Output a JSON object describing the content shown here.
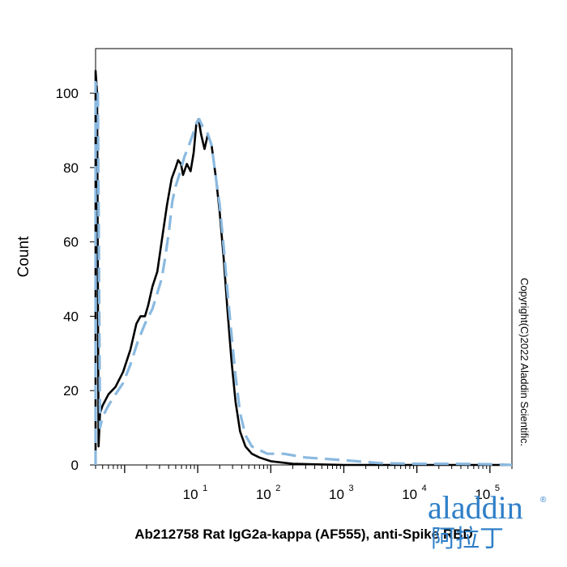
{
  "chart_data": {
    "type": "line",
    "xscale": "log",
    "xlim": [
      0.4,
      200000
    ],
    "ylim": [
      0,
      112
    ],
    "ylabel": "Count",
    "xlabel": "Ab212758 Rat IgG2a-kappa (AF555), anti-Spike RBD",
    "yticks": [
      "0",
      "20",
      "40",
      "60",
      "80",
      "100"
    ],
    "ytick_values": [
      0,
      20,
      40,
      60,
      80,
      100
    ],
    "xticks": [
      {
        "value": 10,
        "base": "10",
        "exp": "1"
      },
      {
        "value": 100,
        "base": "10",
        "exp": "2"
      },
      {
        "value": 1000,
        "base": "10",
        "exp": "3"
      },
      {
        "value": 10000,
        "base": "10",
        "exp": "4"
      },
      {
        "value": 100000,
        "base": "10",
        "exp": "5"
      }
    ],
    "series": [
      {
        "style": "solid",
        "color": "#000000",
        "points": [
          [
            0.4,
            0
          ],
          [
            0.4,
            106
          ],
          [
            0.42,
            100
          ],
          [
            0.44,
            5
          ],
          [
            0.46,
            14
          ],
          [
            0.5,
            16
          ],
          [
            0.6,
            19
          ],
          [
            0.75,
            21
          ],
          [
            0.95,
            25
          ],
          [
            1.2,
            31
          ],
          [
            1.45,
            38
          ],
          [
            1.65,
            40
          ],
          [
            1.9,
            40
          ],
          [
            2.1,
            43
          ],
          [
            2.4,
            48
          ],
          [
            2.8,
            52
          ],
          [
            3.2,
            60
          ],
          [
            3.8,
            70
          ],
          [
            4.4,
            77
          ],
          [
            5.0,
            80
          ],
          [
            5.4,
            82
          ],
          [
            5.9,
            81
          ],
          [
            6.3,
            78
          ],
          [
            7.1,
            81
          ],
          [
            8.0,
            79
          ],
          [
            8.8,
            84
          ],
          [
            9.6,
            92
          ],
          [
            10.3,
            93
          ],
          [
            11.1,
            89
          ],
          [
            12.4,
            85
          ],
          [
            13.8,
            89
          ],
          [
            15.5,
            86
          ],
          [
            17.8,
            77
          ],
          [
            20.0,
            68
          ],
          [
            22.6,
            56
          ],
          [
            25.5,
            42
          ],
          [
            29.0,
            28
          ],
          [
            33.0,
            17
          ],
          [
            38.0,
            9
          ],
          [
            45.0,
            5
          ],
          [
            55.0,
            3
          ],
          [
            70.0,
            2
          ],
          [
            100.0,
            1
          ],
          [
            200.0,
            0.3
          ],
          [
            1000.0,
            0
          ],
          [
            200000.0,
            0
          ]
        ]
      },
      {
        "style": "dashed",
        "color": "#8ab9e0",
        "points": [
          [
            0.4,
            0
          ],
          [
            0.4,
            103
          ],
          [
            0.43,
            100
          ],
          [
            0.46,
            10
          ],
          [
            0.5,
            13
          ],
          [
            0.6,
            16
          ],
          [
            0.75,
            19
          ],
          [
            0.95,
            22
          ],
          [
            1.2,
            27
          ],
          [
            1.5,
            33
          ],
          [
            1.9,
            38
          ],
          [
            2.4,
            42
          ],
          [
            3.2,
            50
          ],
          [
            3.6,
            56
          ],
          [
            4.1,
            64
          ],
          [
            4.5,
            71
          ],
          [
            5.0,
            75
          ],
          [
            5.8,
            79
          ],
          [
            6.6,
            83
          ],
          [
            7.6,
            86
          ],
          [
            8.6,
            89
          ],
          [
            9.6,
            92
          ],
          [
            10.5,
            93
          ],
          [
            11.7,
            91
          ],
          [
            13.2,
            90
          ],
          [
            15.5,
            86
          ],
          [
            17.8,
            77
          ],
          [
            20.0,
            70
          ],
          [
            22.6,
            59
          ],
          [
            25.5,
            47
          ],
          [
            29.0,
            35
          ],
          [
            33.0,
            24
          ],
          [
            38.0,
            14
          ],
          [
            45.0,
            8
          ],
          [
            55.0,
            5
          ],
          [
            70.0,
            4
          ],
          [
            90.0,
            3
          ],
          [
            150.0,
            3
          ],
          [
            300.0,
            2
          ],
          [
            700.0,
            1.5
          ],
          [
            1500.0,
            1
          ],
          [
            3000.0,
            0.5
          ],
          [
            10000.0,
            0.3
          ],
          [
            30000.0,
            0.3
          ],
          [
            100000.0,
            0.2
          ],
          [
            200000.0,
            0
          ]
        ]
      }
    ]
  },
  "copyright": "Copyright(C)2022 Aladdin Scientific.",
  "logo": {
    "name": "aladdin",
    "registered": "®",
    "chinese": "阿拉丁",
    "color": "#2f7fc8",
    "accent": "#9ab63a"
  }
}
